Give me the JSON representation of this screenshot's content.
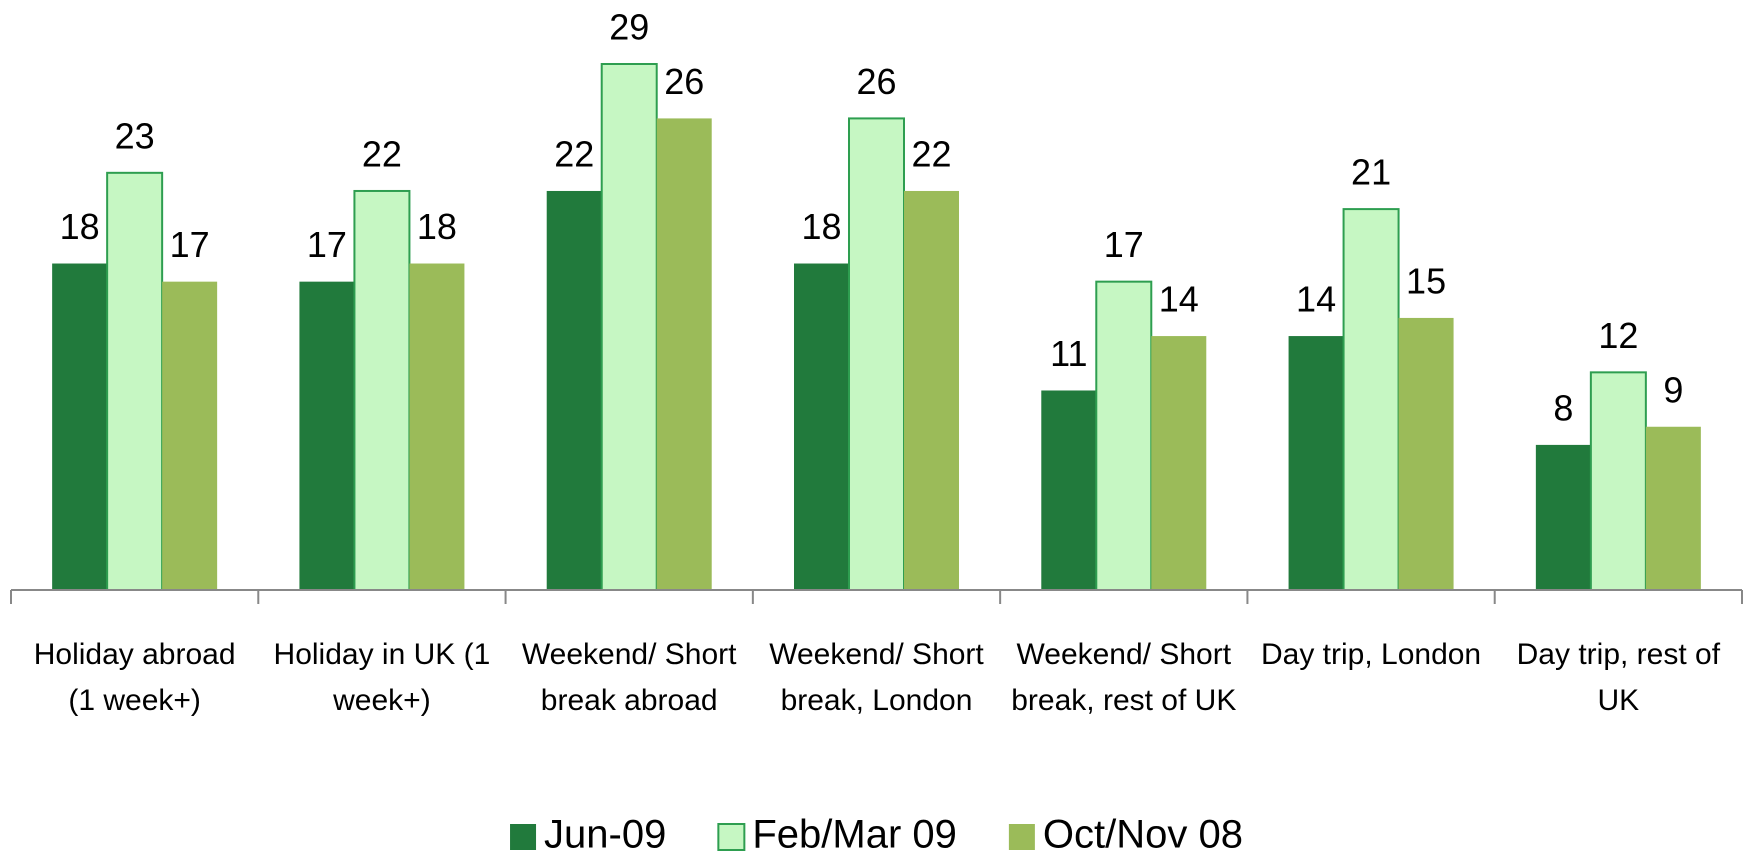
{
  "chart_data": {
    "type": "bar",
    "categories": [
      "Holiday abroad (1 week+)",
      "Holiday in UK (1 week+)",
      "Weekend/ Short break abroad",
      "Weekend/ Short break, London",
      "Weekend/ Short break, rest of UK",
      "Day trip, London",
      "Day trip, rest of UK"
    ],
    "series": [
      {
        "name": "Jun-09",
        "color": "#217a3c",
        "values": [
          18,
          17,
          22,
          18,
          11,
          14,
          8
        ]
      },
      {
        "name": "Feb/Mar 09",
        "color": "#c6f7c3",
        "values": [
          23,
          22,
          29,
          26,
          17,
          21,
          12
        ]
      },
      {
        "name": "Oct/Nov 08",
        "color": "#9bbb59",
        "values": [
          17,
          18,
          26,
          22,
          14,
          15,
          9
        ]
      }
    ],
    "legend": "bottom"
  }
}
